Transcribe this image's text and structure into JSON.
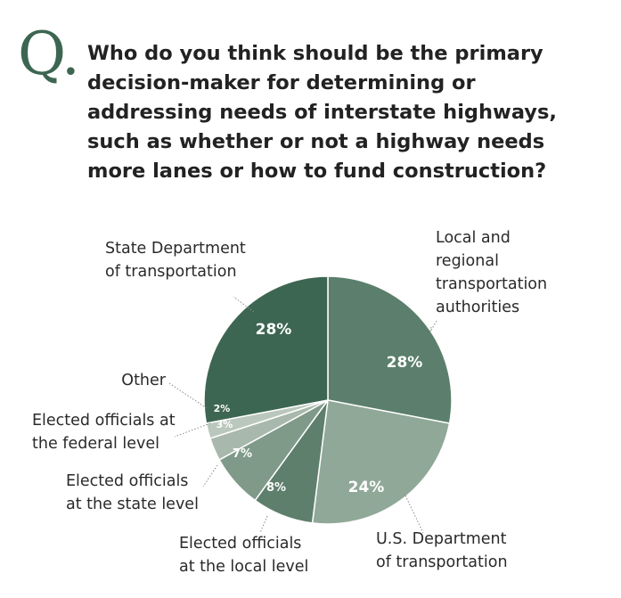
{
  "question_mark": "Q.",
  "question": "Who do you think should be the primary decision-maker for determining or addressing needs of interstate highways, such as whether or not a highway needs more lanes or how to fund construction?",
  "chart_data": {
    "type": "pie",
    "title": "",
    "start_angle_deg": 270,
    "slices": [
      {
        "label": "Local and regional transportation authorities",
        "value": 28,
        "value_label": "28%",
        "color": "#5b7f6c"
      },
      {
        "label": "U.S. Department of transportation",
        "value": 24,
        "value_label": "24%",
        "color": "#90a898"
      },
      {
        "label": "Elected officials at the local level",
        "value": 8,
        "value_label": "8%",
        "color": "#5e7f6b"
      },
      {
        "label": "Elected officials at the state level",
        "value": 7,
        "value_label": "7%",
        "color": "#809a89"
      },
      {
        "label": "Elected officials at the federal level",
        "value": 3,
        "value_label": "3%",
        "color": "#a8b8ad"
      },
      {
        "label": "Other",
        "value": 2,
        "value_label": "2%",
        "color": "#bac7bd"
      },
      {
        "label": "State Department of transportation",
        "value": 28,
        "value_label": "28%",
        "color": "#3d6652"
      }
    ],
    "labels_display": [
      [
        "Local and",
        "regional",
        "transportation",
        "authorities"
      ],
      [
        "U.S. Department",
        "of transportation"
      ],
      [
        "Elected officials",
        "at the local level"
      ],
      [
        "Elected officials",
        "at the state level"
      ],
      [
        "Elected officials at",
        "the federal level"
      ],
      [
        "Other"
      ],
      [
        "State Department",
        "of transportation"
      ]
    ]
  }
}
